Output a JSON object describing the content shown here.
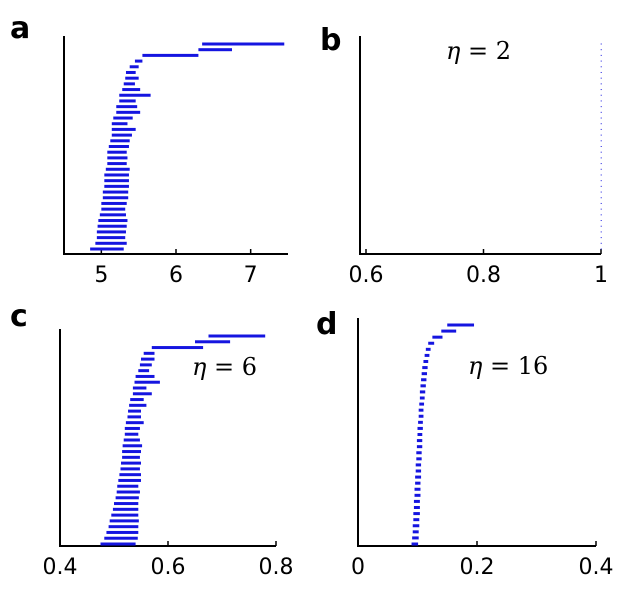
{
  "chart_data": [
    {
      "panel": "a",
      "type": "interval",
      "annotation": "",
      "xlim": [
        4.5,
        7.5
      ],
      "xticks": [
        5,
        6,
        7
      ],
      "xtick_labels": [
        "5",
        "6",
        "7"
      ],
      "color": "#1515e0",
      "intervals": [
        [
          6.35,
          7.45
        ],
        [
          6.3,
          6.75
        ],
        [
          5.55,
          6.3
        ],
        [
          5.45,
          5.55
        ],
        [
          5.38,
          5.5
        ],
        [
          5.33,
          5.46
        ],
        [
          5.32,
          5.5
        ],
        [
          5.3,
          5.45
        ],
        [
          5.28,
          5.52
        ],
        [
          5.24,
          5.66
        ],
        [
          5.24,
          5.46
        ],
        [
          5.2,
          5.48
        ],
        [
          5.2,
          5.52
        ],
        [
          5.16,
          5.42
        ],
        [
          5.14,
          5.35
        ],
        [
          5.14,
          5.46
        ],
        [
          5.14,
          5.41
        ],
        [
          5.12,
          5.38
        ],
        [
          5.1,
          5.37
        ],
        [
          5.08,
          5.34
        ],
        [
          5.08,
          5.35
        ],
        [
          5.08,
          5.34
        ],
        [
          5.06,
          5.38
        ],
        [
          5.04,
          5.37
        ],
        [
          5.04,
          5.37
        ],
        [
          5.04,
          5.37
        ],
        [
          5.02,
          5.36
        ],
        [
          5.02,
          5.36
        ],
        [
          5.0,
          5.34
        ],
        [
          5.0,
          5.32
        ],
        [
          4.98,
          5.33
        ],
        [
          4.96,
          5.35
        ],
        [
          4.95,
          5.34
        ],
        [
          4.94,
          5.33
        ],
        [
          4.94,
          5.32
        ],
        [
          4.92,
          5.34
        ],
        [
          4.85,
          5.3
        ]
      ]
    },
    {
      "panel": "b",
      "type": "interval",
      "annotation": "η = 2",
      "xlim": [
        0.6,
        1.0
      ],
      "xticks": [
        0.6,
        0.8,
        1.0
      ],
      "xtick_labels": [
        "0.6",
        "0.8",
        "1"
      ],
      "color": "#1515e0",
      "intervals": [
        [
          0.9995,
          1.0
        ],
        [
          0.9995,
          1.0
        ],
        [
          0.9995,
          1.0
        ],
        [
          0.9995,
          1.0
        ],
        [
          0.9995,
          1.0
        ],
        [
          0.9995,
          1.0
        ],
        [
          0.9995,
          1.0
        ],
        [
          0.9995,
          1.0
        ],
        [
          0.9995,
          1.0
        ],
        [
          0.9995,
          1.0
        ],
        [
          0.9995,
          1.0
        ],
        [
          0.9995,
          1.0
        ],
        [
          0.9995,
          1.0
        ],
        [
          0.9995,
          1.0
        ],
        [
          0.9995,
          1.0
        ],
        [
          0.9995,
          1.0
        ],
        [
          0.9995,
          1.0
        ],
        [
          0.9995,
          1.0
        ],
        [
          0.9995,
          1.0
        ],
        [
          0.9995,
          1.0
        ],
        [
          0.9995,
          1.0
        ],
        [
          0.9995,
          1.0
        ],
        [
          0.9995,
          1.0
        ],
        [
          0.9995,
          1.0
        ],
        [
          0.9995,
          1.0
        ],
        [
          0.9995,
          1.0
        ],
        [
          0.9995,
          1.0
        ],
        [
          0.9995,
          1.0
        ],
        [
          0.9995,
          1.0
        ],
        [
          0.9995,
          1.0
        ],
        [
          0.9995,
          1.0
        ],
        [
          0.9995,
          1.0
        ],
        [
          0.9995,
          1.0
        ],
        [
          0.9995,
          1.0
        ],
        [
          0.9995,
          1.0
        ],
        [
          0.9995,
          1.0
        ],
        [
          0.9995,
          1.0
        ]
      ]
    },
    {
      "panel": "c",
      "type": "interval",
      "annotation": "η = 6",
      "xlim": [
        0.4,
        0.8
      ],
      "xticks": [
        0.4,
        0.6,
        0.8
      ],
      "xtick_labels": [
        "0.4",
        "0.6",
        "0.8"
      ],
      "color": "#1515e0",
      "intervals": [
        [
          0.675,
          0.78
        ],
        [
          0.65,
          0.715
        ],
        [
          0.57,
          0.665
        ],
        [
          0.555,
          0.575
        ],
        [
          0.55,
          0.575
        ],
        [
          0.548,
          0.57
        ],
        [
          0.545,
          0.565
        ],
        [
          0.54,
          0.575
        ],
        [
          0.538,
          0.585
        ],
        [
          0.535,
          0.56
        ],
        [
          0.535,
          0.57
        ],
        [
          0.53,
          0.555
        ],
        [
          0.528,
          0.56
        ],
        [
          0.526,
          0.55
        ],
        [
          0.525,
          0.55
        ],
        [
          0.522,
          0.555
        ],
        [
          0.52,
          0.548
        ],
        [
          0.52,
          0.545
        ],
        [
          0.518,
          0.548
        ],
        [
          0.516,
          0.552
        ],
        [
          0.515,
          0.55
        ],
        [
          0.515,
          0.548
        ],
        [
          0.513,
          0.55
        ],
        [
          0.512,
          0.548
        ],
        [
          0.51,
          0.55
        ],
        [
          0.508,
          0.55
        ],
        [
          0.506,
          0.545
        ],
        [
          0.505,
          0.548
        ],
        [
          0.503,
          0.546
        ],
        [
          0.5,
          0.545
        ],
        [
          0.498,
          0.545
        ],
        [
          0.495,
          0.545
        ],
        [
          0.492,
          0.546
        ],
        [
          0.49,
          0.545
        ],
        [
          0.486,
          0.545
        ],
        [
          0.482,
          0.544
        ],
        [
          0.475,
          0.54
        ]
      ]
    },
    {
      "panel": "d",
      "type": "interval",
      "annotation": "η = 16",
      "xlim": [
        0.0,
        0.4
      ],
      "xticks": [
        0.0,
        0.2,
        0.4
      ],
      "xtick_labels": [
        "0",
        "0.2",
        "0.4"
      ],
      "color": "#1515e0",
      "intervals": [
        [
          0.15,
          0.195
        ],
        [
          0.14,
          0.165
        ],
        [
          0.125,
          0.142
        ],
        [
          0.118,
          0.128
        ],
        [
          0.114,
          0.122
        ],
        [
          0.112,
          0.12
        ],
        [
          0.11,
          0.118
        ],
        [
          0.108,
          0.117
        ],
        [
          0.107,
          0.116
        ],
        [
          0.106,
          0.115
        ],
        [
          0.105,
          0.114
        ],
        [
          0.104,
          0.113
        ],
        [
          0.104,
          0.112
        ],
        [
          0.103,
          0.111
        ],
        [
          0.102,
          0.11
        ],
        [
          0.102,
          0.11
        ],
        [
          0.101,
          0.109
        ],
        [
          0.1,
          0.109
        ],
        [
          0.1,
          0.108
        ],
        [
          0.099,
          0.108
        ],
        [
          0.099,
          0.108
        ],
        [
          0.098,
          0.107
        ],
        [
          0.098,
          0.107
        ],
        [
          0.097,
          0.106
        ],
        [
          0.097,
          0.106
        ],
        [
          0.096,
          0.106
        ],
        [
          0.096,
          0.105
        ],
        [
          0.095,
          0.105
        ],
        [
          0.095,
          0.105
        ],
        [
          0.094,
          0.104
        ],
        [
          0.094,
          0.104
        ],
        [
          0.093,
          0.104
        ],
        [
          0.093,
          0.103
        ],
        [
          0.092,
          0.103
        ],
        [
          0.092,
          0.102
        ],
        [
          0.091,
          0.102
        ],
        [
          0.09,
          0.101
        ]
      ]
    }
  ]
}
